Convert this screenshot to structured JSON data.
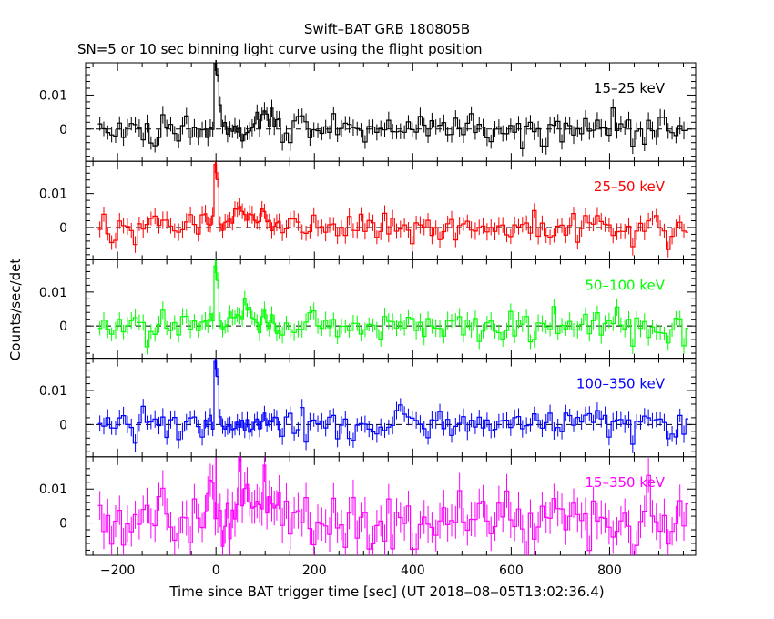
{
  "title": "Swift–BAT GRB 180805B",
  "subtitle": "SN=5 or 10 sec binning light curve using the flight position",
  "ylabel": "Counts/sec/det",
  "xlabel": "Time since BAT trigger time [sec] (UT 2018‒08‒05T13:02:36.4)",
  "chart_data": {
    "type": "line",
    "xlim": [
      -265,
      975
    ],
    "ylim": [
      -0.0095,
      0.0195
    ],
    "x_ticks": [
      -200,
      0,
      200,
      400,
      600,
      800
    ],
    "x_tick_labels": [
      "−200",
      "0",
      "200",
      "400",
      "600",
      "800"
    ],
    "y_ticks": [
      0,
      0.01
    ],
    "y_tick_labels": [
      "0",
      "0.01"
    ],
    "baseline": 0,
    "panels": [
      {
        "band": "15–25 keV",
        "color": "#000000",
        "trigger_spike": 0.021,
        "peaks": [
          {
            "t": 0,
            "y": 0.021
          },
          {
            "t": 8,
            "y": 0.007
          },
          {
            "t": 100,
            "y": 0.007
          },
          {
            "t": 815,
            "y": 0.005
          }
        ]
      },
      {
        "band": "25–50 keV",
        "color": "#ff0000",
        "trigger_spike": 0.02,
        "peaks": [
          {
            "t": 0,
            "y": 0.02
          },
          {
            "t": 55,
            "y": 0.006
          },
          {
            "t": 100,
            "y": 0.007
          },
          {
            "t": 880,
            "y": 0.005
          }
        ]
      },
      {
        "band": "50–100 keV",
        "color": "#00ff00",
        "trigger_spike": 0.019,
        "peaks": [
          {
            "t": 0,
            "y": 0.019
          },
          {
            "t": 55,
            "y": 0.01
          },
          {
            "t": 100,
            "y": 0.004
          },
          {
            "t": 500,
            "y": 0.004
          }
        ]
      },
      {
        "band": "100–350 keV",
        "color": "#0000ff",
        "trigger_spike": 0.02,
        "peaks": [
          {
            "t": 0,
            "y": 0.02
          },
          {
            "t": 105,
            "y": 0.004
          },
          {
            "t": 385,
            "y": 0.005
          }
        ]
      },
      {
        "band": "15–350 keV",
        "color": "#ff00ff",
        "trigger_spike": 0.019,
        "peaks": [
          {
            "t": -10,
            "y": 0.016
          },
          {
            "t": 55,
            "y": 0.02
          },
          {
            "t": 100,
            "y": 0.018
          },
          {
            "t": 520,
            "y": 0.008
          },
          {
            "t": 880,
            "y": 0.008
          }
        ]
      }
    ]
  }
}
